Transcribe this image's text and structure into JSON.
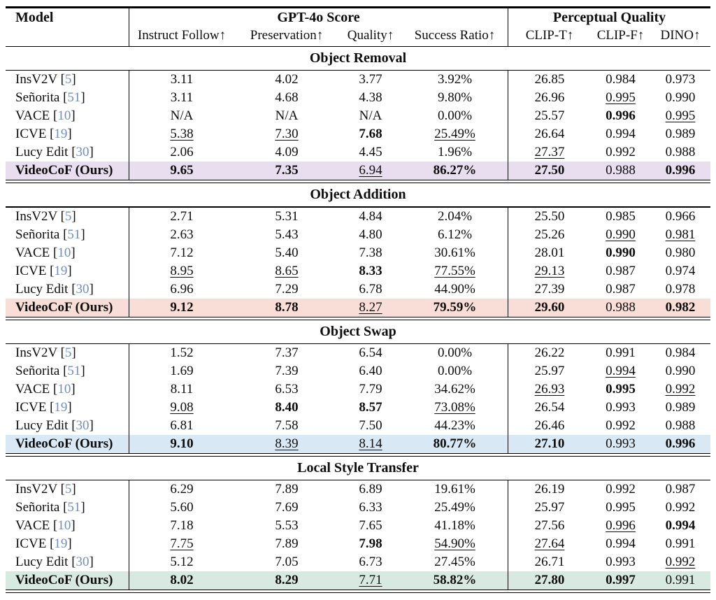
{
  "table": {
    "header": {
      "model": "Model",
      "group1": "GPT-4o Score",
      "group2": "Perceptual Quality",
      "cols": [
        "Instruct Follow↑",
        "Preservation↑",
        "Quality↑",
        "Success Ratio↑",
        "CLIP-T↑",
        "CLIP-F↑",
        "DINO↑"
      ]
    },
    "colors": {
      "citation_blue": "#6d8dc3",
      "text": "#0d0d0d",
      "highlight_object_removal": "#e8def0",
      "highlight_object_addition": "#f8ded7",
      "highlight_object_swap": "#d8e8f4",
      "highlight_local_style_transfer": "#d8e9e2"
    },
    "sections": [
      {
        "title": "Object Removal",
        "highlight": "#e8def0",
        "rows": [
          {
            "model": "InsV2V",
            "cite": "5",
            "emph": false,
            "cells": [
              "3.11",
              "4.02",
              "3.77",
              "3.92%",
              "26.85",
              "0.984",
              "0.973"
            ],
            "fmt": [
              "",
              "",
              "",
              "",
              "",
              "",
              ""
            ]
          },
          {
            "model": "Señorita",
            "cite": "51",
            "emph": false,
            "cells": [
              "3.11",
              "4.68",
              "4.38",
              "9.80%",
              "26.96",
              "0.995",
              "0.990"
            ],
            "fmt": [
              "",
              "",
              "",
              "",
              "",
              "u",
              ""
            ]
          },
          {
            "model": "VACE",
            "cite": "10",
            "emph": false,
            "cells": [
              "N/A",
              "N/A",
              "N/A",
              "0.00%",
              "25.57",
              "0.996",
              "0.995"
            ],
            "fmt": [
              "",
              "",
              "",
              "",
              "",
              "b",
              "u"
            ]
          },
          {
            "model": "ICVE",
            "cite": "19",
            "emph": false,
            "cells": [
              "5.38",
              "7.30",
              "7.68",
              "25.49%",
              "26.64",
              "0.994",
              "0.989"
            ],
            "fmt": [
              "u",
              "u",
              "b",
              "u",
              "",
              "",
              ""
            ]
          },
          {
            "model": "Lucy Edit",
            "cite": "30",
            "emph": false,
            "cells": [
              "2.06",
              "4.09",
              "4.45",
              "1.96%",
              "27.37",
              "0.992",
              "0.988"
            ],
            "fmt": [
              "",
              "",
              "",
              "",
              "u",
              "",
              ""
            ]
          },
          {
            "model": "VideoCoF (Ours)",
            "cite": null,
            "emph": true,
            "cells": [
              "9.65",
              "7.35",
              "6.94",
              "86.27%",
              "27.50",
              "0.988",
              "0.996"
            ],
            "fmt": [
              "b",
              "b",
              "u",
              "b",
              "b",
              "",
              "b"
            ]
          }
        ]
      },
      {
        "title": "Object Addition",
        "highlight": "#f8ded7",
        "rows": [
          {
            "model": "InsV2V",
            "cite": "5",
            "emph": false,
            "cells": [
              "2.71",
              "5.31",
              "4.84",
              "2.04%",
              "25.50",
              "0.985",
              "0.966"
            ],
            "fmt": [
              "",
              "",
              "",
              "",
              "",
              "",
              ""
            ]
          },
          {
            "model": "Señorita",
            "cite": "51",
            "emph": false,
            "cells": [
              "2.63",
              "5.43",
              "4.80",
              "6.12%",
              "25.26",
              "0.990",
              "0.981"
            ],
            "fmt": [
              "",
              "",
              "",
              "",
              "",
              "u",
              "u"
            ]
          },
          {
            "model": "VACE",
            "cite": "10",
            "emph": false,
            "cells": [
              "7.12",
              "5.40",
              "7.38",
              "30.61%",
              "28.01",
              "0.990",
              "0.980"
            ],
            "fmt": [
              "",
              "",
              "",
              "",
              "",
              "b",
              ""
            ]
          },
          {
            "model": "ICVE",
            "cite": "19",
            "emph": false,
            "cells": [
              "8.95",
              "8.65",
              "8.33",
              "77.55%",
              "29.13",
              "0.987",
              "0.974"
            ],
            "fmt": [
              "u",
              "u",
              "b",
              "u",
              "u",
              "",
              ""
            ]
          },
          {
            "model": "Lucy Edit",
            "cite": "30",
            "emph": false,
            "cells": [
              "6.96",
              "7.29",
              "6.78",
              "44.90%",
              "27.39",
              "0.987",
              "0.978"
            ],
            "fmt": [
              "",
              "",
              "",
              "",
              "",
              "",
              ""
            ]
          },
          {
            "model": "VideoCoF (Ours)",
            "cite": null,
            "emph": true,
            "cells": [
              "9.12",
              "8.78",
              "8.27",
              "79.59%",
              "29.60",
              "0.988",
              "0.982"
            ],
            "fmt": [
              "b",
              "b",
              "u",
              "b",
              "b",
              "",
              "b"
            ]
          }
        ]
      },
      {
        "title": "Object Swap",
        "highlight": "#d8e8f4",
        "rows": [
          {
            "model": "InsV2V",
            "cite": "5",
            "emph": false,
            "cells": [
              "1.52",
              "7.37",
              "6.54",
              "0.00%",
              "26.22",
              "0.991",
              "0.984"
            ],
            "fmt": [
              "",
              "",
              "",
              "",
              "",
              "",
              ""
            ]
          },
          {
            "model": "Señorita",
            "cite": "51",
            "emph": false,
            "cells": [
              "1.69",
              "7.39",
              "6.40",
              "0.00%",
              "25.97",
              "0.994",
              "0.990"
            ],
            "fmt": [
              "",
              "",
              "",
              "",
              "",
              "u",
              ""
            ]
          },
          {
            "model": "VACE",
            "cite": "10",
            "emph": false,
            "cells": [
              "8.11",
              "6.53",
              "7.79",
              "34.62%",
              "26.93",
              "0.995",
              "0.992"
            ],
            "fmt": [
              "",
              "",
              "",
              "",
              "u",
              "b",
              "u"
            ]
          },
          {
            "model": "ICVE",
            "cite": "19",
            "emph": false,
            "cells": [
              "9.08",
              "8.40",
              "8.57",
              "73.08%",
              "26.54",
              "0.993",
              "0.989"
            ],
            "fmt": [
              "u",
              "b",
              "b",
              "u",
              "",
              "",
              ""
            ]
          },
          {
            "model": "Lucy Edit",
            "cite": "30",
            "emph": false,
            "cells": [
              "6.81",
              "7.58",
              "7.50",
              "44.23%",
              "26.46",
              "0.992",
              "0.988"
            ],
            "fmt": [
              "",
              "",
              "",
              "",
              "",
              "",
              ""
            ]
          },
          {
            "model": "VideoCoF (Ours)",
            "cite": null,
            "emph": true,
            "cells": [
              "9.10",
              "8.39",
              "8.14",
              "80.77%",
              "27.10",
              "0.993",
              "0.996"
            ],
            "fmt": [
              "b",
              "u",
              "u",
              "b",
              "b",
              "",
              "b"
            ]
          }
        ]
      },
      {
        "title": "Local Style Transfer",
        "highlight": "#d8e9e2",
        "rows": [
          {
            "model": "InsV2V",
            "cite": "5",
            "emph": false,
            "cells": [
              "6.29",
              "7.89",
              "6.89",
              "19.61%",
              "26.19",
              "0.992",
              "0.987"
            ],
            "fmt": [
              "",
              "",
              "",
              "",
              "",
              "",
              ""
            ]
          },
          {
            "model": "Señorita",
            "cite": "51",
            "emph": false,
            "cells": [
              "5.60",
              "7.69",
              "6.33",
              "25.49%",
              "25.97",
              "0.995",
              "0.992"
            ],
            "fmt": [
              "",
              "",
              "",
              "",
              "",
              "",
              ""
            ]
          },
          {
            "model": "VACE",
            "cite": "10",
            "emph": false,
            "cells": [
              "7.18",
              "5.53",
              "7.65",
              "41.18%",
              "27.56",
              "0.996",
              "0.994"
            ],
            "fmt": [
              "",
              "",
              "",
              "",
              "",
              "u",
              "b"
            ]
          },
          {
            "model": "ICVE",
            "cite": "19",
            "emph": false,
            "cells": [
              "7.75",
              "7.89",
              "7.98",
              "54.90%",
              "27.64",
              "0.994",
              "0.991"
            ],
            "fmt": [
              "u",
              "",
              "b",
              "u",
              "u",
              "",
              ""
            ]
          },
          {
            "model": "Lucy Edit",
            "cite": "30",
            "emph": false,
            "cells": [
              "5.12",
              "7.05",
              "6.73",
              "27.45%",
              "26.71",
              "0.993",
              "0.992"
            ],
            "fmt": [
              "",
              "",
              "",
              "",
              "",
              "",
              "u"
            ]
          },
          {
            "model": "VideoCoF (Ours)",
            "cite": null,
            "emph": true,
            "cells": [
              "8.02",
              "8.29",
              "7.71",
              "58.82%",
              "27.80",
              "0.997",
              "0.991"
            ],
            "fmt": [
              "b",
              "b",
              "u",
              "b",
              "b",
              "b",
              ""
            ]
          }
        ]
      }
    ]
  }
}
